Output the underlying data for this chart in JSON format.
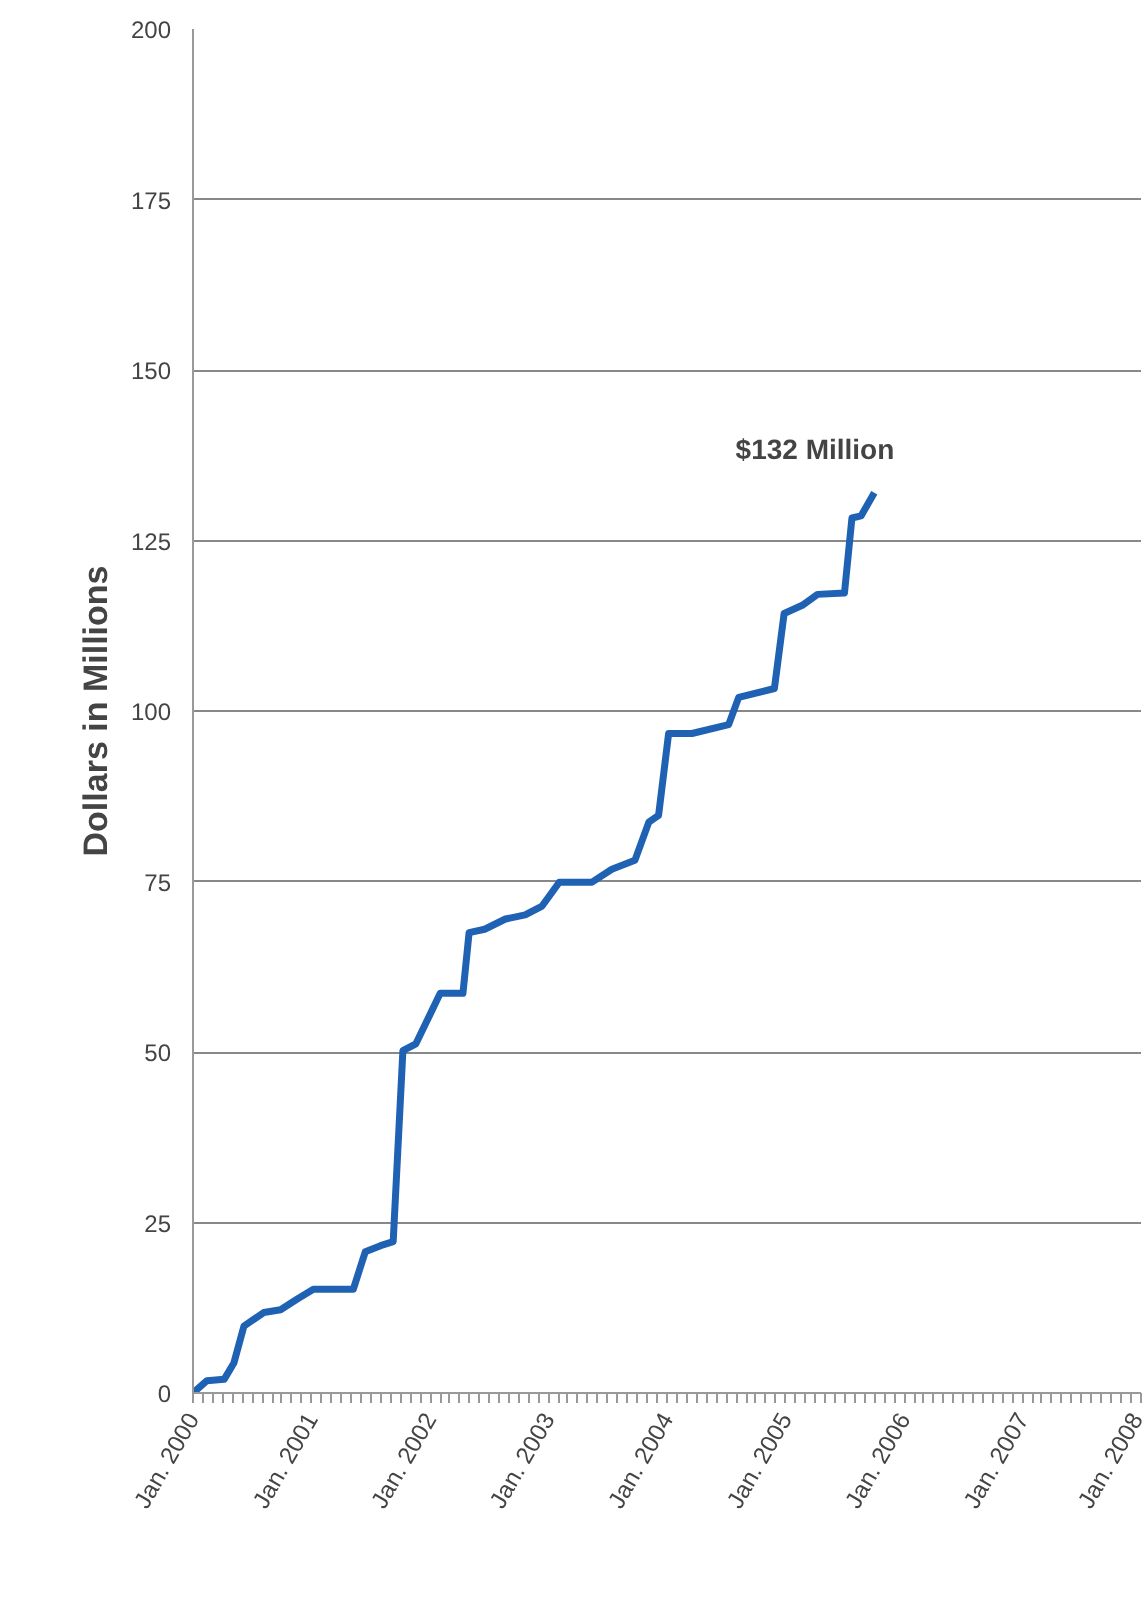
{
  "chart_data": {
    "type": "line",
    "ylabel": "Dollars in Millions",
    "x": [
      "2000-01-01",
      "2000-02-13",
      "2000-04-06",
      "2000-05-06",
      "2000-06-06",
      "2000-08-06",
      "2000-09-27",
      "2000-11-15",
      "2001-01-06",
      "2001-05-09",
      "2001-06-15",
      "2001-08-01",
      "2001-09-09",
      "2001-10-09",
      "2001-11-18",
      "2002-02-01",
      "2002-04-12",
      "2002-05-01",
      "2002-06-18",
      "2002-08-21",
      "2002-10-21",
      "2002-12-12",
      "2003-02-03",
      "2003-05-15",
      "2003-07-15",
      "2003-09-24",
      "2003-11-06",
      "2003-12-06",
      "2004-01-06",
      "2004-03-18",
      "2004-07-09",
      "2004-08-09",
      "2004-11-27",
      "2004-12-27",
      "2005-02-21",
      "2005-04-09",
      "2005-07-01",
      "2005-07-24",
      "2005-08-21",
      "2005-10-01"
    ],
    "series": [
      {
        "color": "#1f62b3",
        "values": [
          0,
          1.8,
          2,
          4.4,
          9.8,
          11.8,
          12.2,
          13.7,
          15.2,
          15.2,
          20.7,
          21.6,
          22.2,
          50.2,
          51.2,
          58.6,
          58.6,
          67.5,
          68,
          69.5,
          70.1,
          71.4,
          74.9,
          74.9,
          76.8,
          78.1,
          83.7,
          84.7,
          96.7,
          96.7,
          98,
          102,
          103.3,
          114.3,
          115.5,
          117.1,
          117.3,
          128.3,
          128.6,
          132
        ]
      }
    ],
    "annotations": [
      {
        "text": "$132 Million",
        "x": "2005-10-01",
        "y": 132
      }
    ],
    "xlim": [
      "2000-01-01",
      "2008-01-01"
    ],
    "xticks": [
      {
        "value": "2000-01-01",
        "label": "Jan. 2000"
      },
      {
        "value": "2001-01-01",
        "label": "Jan. 2001"
      },
      {
        "value": "2002-01-01",
        "label": "Jan. 2002"
      },
      {
        "value": "2003-01-01",
        "label": "Jan. 2003"
      },
      {
        "value": "2004-01-01",
        "label": "Jan. 2004"
      },
      {
        "value": "2005-01-01",
        "label": "Jan. 2005"
      },
      {
        "value": "2006-01-01",
        "label": "Jan. 2006"
      },
      {
        "value": "2007-01-01",
        "label": "Jan. 2007"
      },
      {
        "value": "2008-01-01",
        "label": "Jan. 2008"
      }
    ],
    "ylim": [
      0,
      200
    ],
    "yticks": [
      0,
      25,
      50,
      75,
      100,
      125,
      150,
      175,
      200
    ],
    "grid": "y",
    "marker": "none",
    "line_style": "solid"
  }
}
